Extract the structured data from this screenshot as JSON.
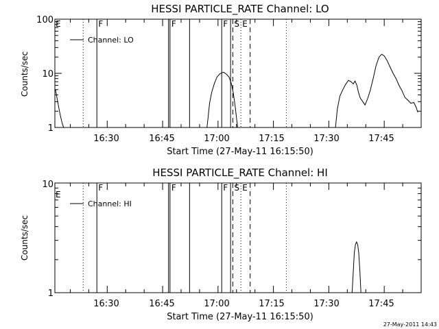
{
  "footer_timestamp": "27-May-2011 14:43",
  "chart_data": [
    {
      "type": "line",
      "title": "HESSI PARTICLE_RATE Channel: LO",
      "xlabel": "Start Time (27-May-11 16:15:50)",
      "ylabel": "Counts/sec",
      "y_scale": "log",
      "xlim_minutes_after_16_00": [
        15.83,
        115
      ],
      "ylim": [
        1,
        100
      ],
      "x_ticks": [
        "16:30",
        "16:45",
        "17:00",
        "17:15",
        "17:30",
        "17:45"
      ],
      "y_ticks": [
        "1",
        "10",
        "100"
      ],
      "legend": {
        "placement": "top-left",
        "entries": [
          "Channel: LO"
        ]
      },
      "grid": false,
      "series": [
        {
          "name": "Channel: LO",
          "segments": [
            [
              [
                16.0,
                5.0
              ],
              [
                16.6,
                3.0
              ],
              [
                17.2,
                1.8
              ],
              [
                17.8,
                1.2
              ],
              [
                18.2,
                1.0
              ]
            ],
            [
              [
                57.0,
                1.0
              ],
              [
                57.3,
                1.5
              ],
              [
                57.7,
                2.8
              ],
              [
                58.3,
                4.5
              ],
              [
                59.0,
                6.5
              ],
              [
                59.7,
                8.5
              ],
              [
                60.5,
                9.8
              ],
              [
                61.5,
                10.5
              ],
              [
                62.3,
                9.6
              ],
              [
                63.0,
                8.5
              ],
              [
                63.6,
                6.5
              ],
              [
                64.1,
                4.5
              ],
              [
                64.6,
                2.6
              ],
              [
                65.0,
                1.5
              ],
              [
                65.3,
                1.0
              ]
            ],
            [
              [
                91.8,
                1.0
              ],
              [
                92.3,
                2.2
              ],
              [
                93.0,
                3.8
              ],
              [
                93.8,
                5.0
              ],
              [
                94.5,
                6.2
              ],
              [
                95.3,
                7.4
              ],
              [
                96.0,
                7.0
              ],
              [
                96.6,
                6.4
              ],
              [
                97.1,
                7.2
              ],
              [
                97.6,
                6.0
              ],
              [
                98.0,
                4.5
              ],
              [
                98.5,
                3.5
              ],
              [
                99.2,
                3.0
              ],
              [
                99.8,
                2.6
              ],
              [
                100.5,
                3.4
              ],
              [
                101.2,
                4.8
              ],
              [
                102.0,
                8.0
              ],
              [
                102.8,
                14.0
              ],
              [
                103.6,
                20.0
              ],
              [
                104.3,
                22.5
              ],
              [
                105.0,
                21.0
              ],
              [
                105.8,
                17.0
              ],
              [
                106.6,
                13.0
              ],
              [
                107.4,
                10.0
              ],
              [
                108.2,
                8.0
              ],
              [
                109.0,
                6.0
              ],
              [
                109.8,
                4.8
              ],
              [
                110.6,
                3.6
              ],
              [
                111.4,
                3.2
              ],
              [
                112.2,
                2.8
              ],
              [
                113.0,
                2.9
              ],
              [
                113.6,
                2.4
              ],
              [
                114.1,
                1.9
              ]
            ]
          ]
        }
      ],
      "vertical_markers": [
        {
          "x": 23.5,
          "style": "dotted"
        },
        {
          "x": 27.2,
          "style": "solid",
          "label": "F"
        },
        {
          "x": 46.6,
          "style": "solid"
        },
        {
          "x": 47.0,
          "style": "solid",
          "label": "F"
        },
        {
          "x": 52.3,
          "style": "solid"
        },
        {
          "x": 61.0,
          "style": "solid",
          "label": "F"
        },
        {
          "x": 63.4,
          "style": "solid"
        },
        {
          "x": 64.0,
          "style": "dashed",
          "label": "S"
        },
        {
          "x": 66.2,
          "style": "dotted",
          "label": "E"
        },
        {
          "x": 68.7,
          "style": "dashed"
        },
        {
          "x": 78.5,
          "style": "dotted"
        }
      ],
      "edge_labels": [
        "E"
      ]
    },
    {
      "type": "line",
      "title": "HESSI PARTICLE_RATE Channel: HI",
      "xlabel": "Start Time (27-May-11 16:15:50)",
      "ylabel": "Counts/sec",
      "y_scale": "log",
      "xlim_minutes_after_16_00": [
        15.83,
        115
      ],
      "ylim": [
        1,
        10
      ],
      "x_ticks": [
        "16:30",
        "16:45",
        "17:00",
        "17:15",
        "17:30",
        "17:45"
      ],
      "y_ticks": [
        "1",
        "10"
      ],
      "legend": {
        "placement": "top-left",
        "entries": [
          "Channel: HI"
        ]
      },
      "grid": false,
      "series": [
        {
          "name": "Channel: HI",
          "segments": [
            [
              [
                96.3,
                1.0
              ],
              [
                96.6,
                1.5
              ],
              [
                96.9,
                2.3
              ],
              [
                97.2,
                2.75
              ],
              [
                97.5,
                2.9
              ],
              [
                97.8,
                2.75
              ],
              [
                98.1,
                2.3
              ],
              [
                98.4,
                1.6
              ],
              [
                98.7,
                1.0
              ]
            ]
          ]
        }
      ],
      "vertical_markers": [
        {
          "x": 23.5,
          "style": "dotted"
        },
        {
          "x": 27.2,
          "style": "solid",
          "label": "F"
        },
        {
          "x": 46.6,
          "style": "solid"
        },
        {
          "x": 47.0,
          "style": "solid",
          "label": "F"
        },
        {
          "x": 52.3,
          "style": "solid"
        },
        {
          "x": 61.0,
          "style": "solid",
          "label": "F"
        },
        {
          "x": 63.4,
          "style": "solid"
        },
        {
          "x": 64.0,
          "style": "dashed",
          "label": "S"
        },
        {
          "x": 66.2,
          "style": "dotted",
          "label": "E"
        },
        {
          "x": 68.7,
          "style": "dashed"
        },
        {
          "x": 78.5,
          "style": "dotted"
        }
      ],
      "edge_labels": [
        "E"
      ]
    }
  ]
}
